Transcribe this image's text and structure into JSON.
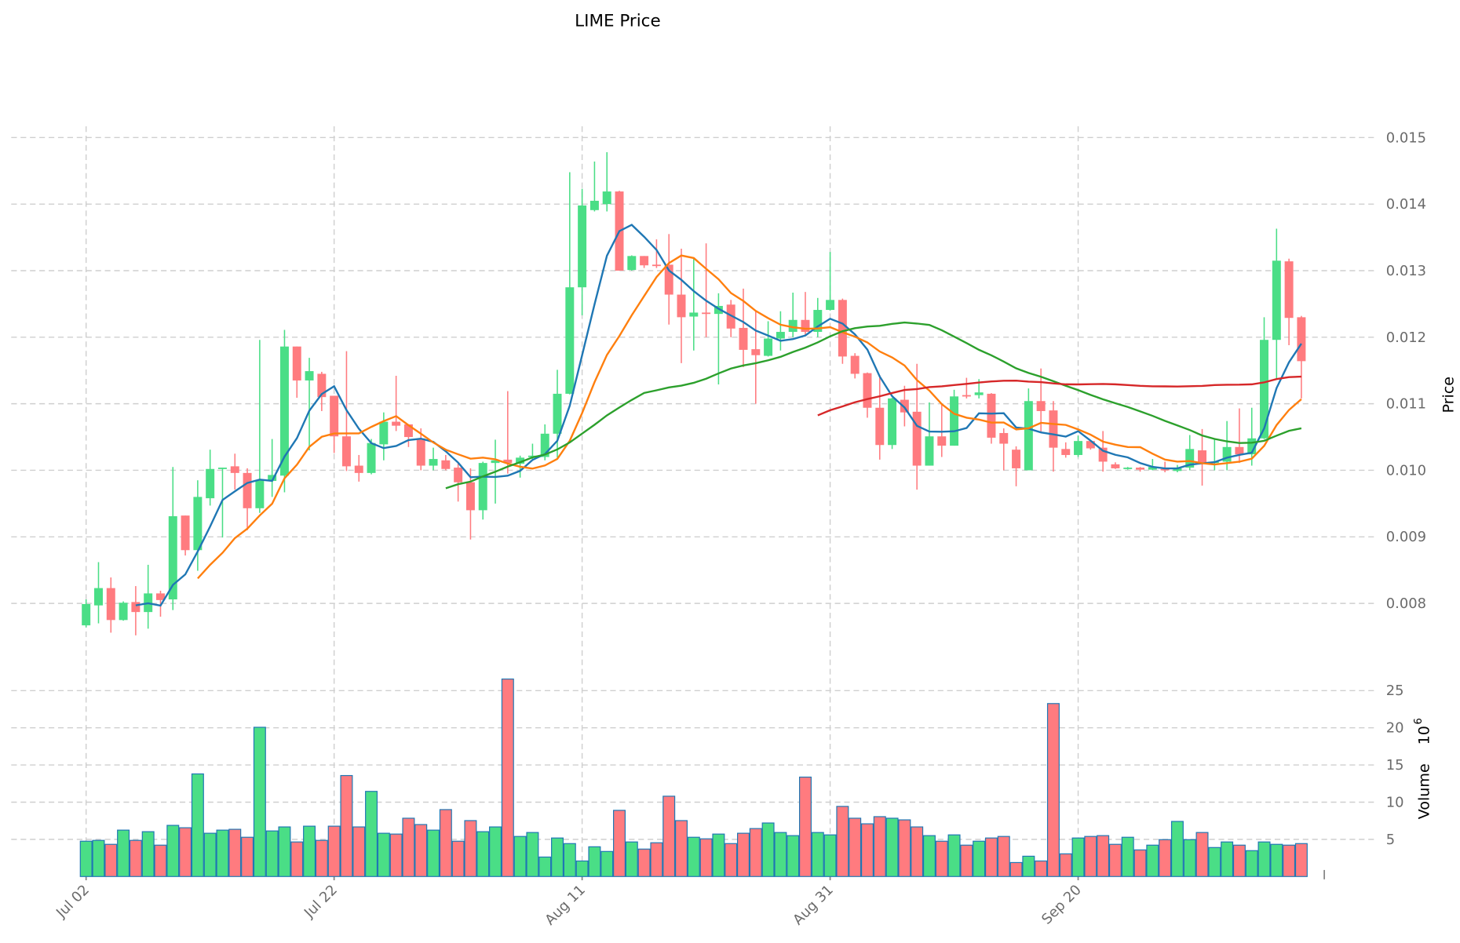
{
  "chart_data": {
    "type": "candlestick",
    "title": "LIME Price",
    "ylabel": "Price",
    "volume_label": "Volume",
    "volume_exponent_base": "10",
    "volume_exponent": "6",
    "ylim": [
      0.0074,
      0.0152
    ],
    "volume_ylim": [
      0,
      27
    ],
    "y_ticks": [
      "0.008",
      "0.009",
      "0.010",
      "0.011",
      "0.012",
      "0.013",
      "0.014",
      "0.015"
    ],
    "volume_ticks": [
      "5",
      "10",
      "15",
      "20",
      "25"
    ],
    "x_ticks": [
      {
        "index": 0,
        "label": "Jul 02"
      },
      {
        "index": 20,
        "label": "Jul 22"
      },
      {
        "index": 40,
        "label": "Aug 11"
      },
      {
        "index": 60,
        "label": "Aug 31"
      },
      {
        "index": 80,
        "label": "Sep 20"
      }
    ],
    "grid": true,
    "colors": {
      "up": "#4ade86",
      "down": "#ff7b7f",
      "volume_edge": "#1f77b4"
    },
    "moving_averages": [
      {
        "period": 5,
        "color": "#1f77b4"
      },
      {
        "period": 10,
        "color": "#ff7f0e"
      },
      {
        "period": 30,
        "color": "#2ca02c"
      },
      {
        "period": 60,
        "color": "#d62728"
      }
    ],
    "open": [
      0.00767,
      0.00797,
      0.00823,
      0.00775,
      0.00802,
      0.00787,
      0.00815,
      0.00806,
      0.00932,
      0.0088,
      0.00958,
      0.01003,
      0.01006,
      0.00996,
      0.00943,
      0.00984,
      0.00992,
      0.01186,
      0.01135,
      0.01145,
      0.01112,
      0.01051,
      0.01007,
      0.00996,
      0.01039,
      0.01073,
      0.01069,
      0.01048,
      0.01007,
      0.01015,
      0.01004,
      0.00982,
      0.0094,
      0.01011,
      0.01016,
      0.0101,
      0.0102,
      0.0102,
      0.01055,
      0.01115,
      0.01275,
      0.01391,
      0.014,
      0.01419,
      0.01301,
      0.01322,
      0.01309,
      0.01309,
      0.01264,
      0.01231,
      0.01237,
      0.01235,
      0.01249,
      0.01214,
      0.01182,
      0.01172,
      0.01198,
      0.01208,
      0.01226,
      0.01208,
      0.01241,
      0.01256,
      0.01172,
      0.01146,
      0.01094,
      0.01038,
      0.01106,
      0.01088,
      0.01007,
      0.01051,
      0.01037,
      0.01113,
      0.01113,
      0.01115,
      0.01056,
      0.01031,
      0.01,
      0.01104,
      0.0109,
      0.01032,
      0.01023,
      0.01044,
      0.01034,
      0.01009,
      0.01003,
      0.01004,
      0.01001,
      0.01002,
      0.00999,
      0.01004,
      0.0103,
      0.01011,
      0.01013,
      0.01035,
      0.01024,
      0.01048,
      0.01196,
      0.01314,
      0.0123
    ],
    "high": [
      0.00806,
      0.00862,
      0.00839,
      0.00803,
      0.00826,
      0.00858,
      0.00819,
      0.01005,
      0.00932,
      0.00985,
      0.01031,
      0.01004,
      0.01025,
      0.01003,
      0.01196,
      0.01047,
      0.01211,
      0.01186,
      0.01169,
      0.01148,
      0.01112,
      0.01179,
      0.01023,
      0.01047,
      0.01087,
      0.01142,
      0.01069,
      0.01063,
      0.01034,
      0.01023,
      0.0101,
      0.01003,
      0.01013,
      0.01046,
      0.01119,
      0.01022,
      0.0104,
      0.01069,
      0.01151,
      0.01448,
      0.01423,
      0.01464,
      0.01478,
      0.0142,
      0.01323,
      0.01322,
      0.01347,
      0.01355,
      0.01333,
      0.01319,
      0.01341,
      0.01266,
      0.01256,
      0.01273,
      0.0124,
      0.01224,
      0.01239,
      0.01267,
      0.01268,
      0.01259,
      0.01328,
      0.01258,
      0.01176,
      0.01147,
      0.01143,
      0.01109,
      0.01127,
      0.0116,
      0.01102,
      0.011,
      0.01121,
      0.01139,
      0.01137,
      0.01116,
      0.01063,
      0.01036,
      0.01123,
      0.01153,
      0.01104,
      0.01042,
      0.01052,
      0.01045,
      0.01059,
      0.01012,
      0.01005,
      0.01005,
      0.01017,
      0.01013,
      0.01008,
      0.01053,
      0.01062,
      0.01046,
      0.01074,
      0.01093,
      0.01094,
      0.0123,
      0.01363,
      0.01318,
      0.01232
    ],
    "low": [
      0.00764,
      0.0077,
      0.00756,
      0.00774,
      0.00752,
      0.00762,
      0.0078,
      0.0079,
      0.00872,
      0.00849,
      0.00947,
      0.00899,
      0.00971,
      0.0091,
      0.00936,
      0.0096,
      0.00967,
      0.01109,
      0.0103,
      0.01089,
      0.01026,
      0.00999,
      0.00983,
      0.00994,
      0.01015,
      0.01059,
      0.01035,
      0.01,
      0.01,
      0.01,
      0.00953,
      0.00896,
      0.00926,
      0.0095,
      0.00995,
      0.00989,
      0.01016,
      0.01015,
      0.01019,
      0.01114,
      0.01233,
      0.01389,
      0.01389,
      0.013,
      0.013,
      0.01304,
      0.01304,
      0.01219,
      0.01161,
      0.0118,
      0.012,
      0.01129,
      0.012,
      0.01155,
      0.011,
      0.01171,
      0.0118,
      0.012,
      0.01202,
      0.012,
      0.0124,
      0.0116,
      0.01138,
      0.01079,
      0.01016,
      0.01032,
      0.01066,
      0.00971,
      0.01007,
      0.0102,
      0.01037,
      0.01108,
      0.01108,
      0.0104,
      0.01,
      0.00976,
      0.01,
      0.01058,
      0.00998,
      0.01019,
      0.0102,
      0.01031,
      0.00998,
      0.01002,
      0.01001,
      0.00998,
      0.01,
      0.00997,
      0.00997,
      0.01,
      0.00977,
      0.01,
      0.01,
      0.01011,
      0.01007,
      0.01047,
      0.01137,
      0.01188,
      0.01108
    ],
    "close": [
      0.00799,
      0.00823,
      0.00775,
      0.00801,
      0.00787,
      0.00815,
      0.00805,
      0.00931,
      0.0088,
      0.0096,
      0.01002,
      0.01004,
      0.00996,
      0.00943,
      0.00985,
      0.00993,
      0.01186,
      0.01135,
      0.01149,
      0.0111,
      0.01051,
      0.01006,
      0.00996,
      0.01041,
      0.01073,
      0.01067,
      0.0105,
      0.01007,
      0.01017,
      0.01002,
      0.00982,
      0.0094,
      0.01011,
      0.01015,
      0.01011,
      0.01019,
      0.01022,
      0.01055,
      0.01115,
      0.01275,
      0.01398,
      0.01405,
      0.01419,
      0.013,
      0.01322,
      0.01308,
      0.01307,
      0.01264,
      0.0123,
      0.01237,
      0.01236,
      0.01247,
      0.01213,
      0.01181,
      0.01173,
      0.01198,
      0.01208,
      0.01226,
      0.01208,
      0.01241,
      0.01256,
      0.01171,
      0.01145,
      0.01094,
      0.01038,
      0.01108,
      0.01087,
      0.01007,
      0.01051,
      0.01037,
      0.01111,
      0.01112,
      0.01117,
      0.01049,
      0.0104,
      0.01003,
      0.01104,
      0.01089,
      0.01034,
      0.01023,
      0.01044,
      0.01033,
      0.01013,
      0.01003,
      0.01004,
      0.01001,
      0.01005,
      0.01001,
      0.01003,
      0.01032,
      0.01012,
      0.01013,
      0.01035,
      0.01024,
      0.01048,
      0.01196,
      0.01315,
      0.01229,
      0.01164
    ],
    "volume": [
      4.75,
      4.86,
      4.33,
      6.24,
      4.86,
      6.03,
      4.22,
      6.88,
      6.56,
      13.8,
      5.82,
      6.24,
      6.35,
      5.28,
      20.07,
      6.13,
      6.67,
      4.65,
      6.77,
      4.86,
      6.77,
      13.58,
      6.67,
      11.45,
      5.82,
      5.71,
      7.84,
      6.99,
      6.24,
      9.0,
      4.75,
      7.52,
      6.03,
      6.67,
      26.56,
      5.39,
      5.92,
      2.62,
      5.18,
      4.43,
      2.09,
      4.0,
      3.37,
      8.9,
      4.65,
      3.69,
      4.54,
      10.8,
      7.52,
      5.28,
      5.07,
      5.71,
      4.43,
      5.82,
      6.45,
      7.2,
      5.92,
      5.5,
      13.37,
      5.92,
      5.6,
      9.43,
      7.84,
      7.09,
      8.05,
      7.84,
      7.62,
      6.67,
      5.5,
      4.75,
      5.6,
      4.22,
      4.75,
      5.18,
      5.39,
      1.88,
      2.73,
      2.09,
      23.26,
      3.05,
      5.18,
      5.39,
      5.5,
      4.33,
      5.28,
      3.58,
      4.22,
      4.96,
      7.41,
      4.96,
      5.92,
      3.9,
      4.65,
      4.22,
      3.48,
      4.65,
      4.33,
      4.22,
      4.43
    ]
  }
}
